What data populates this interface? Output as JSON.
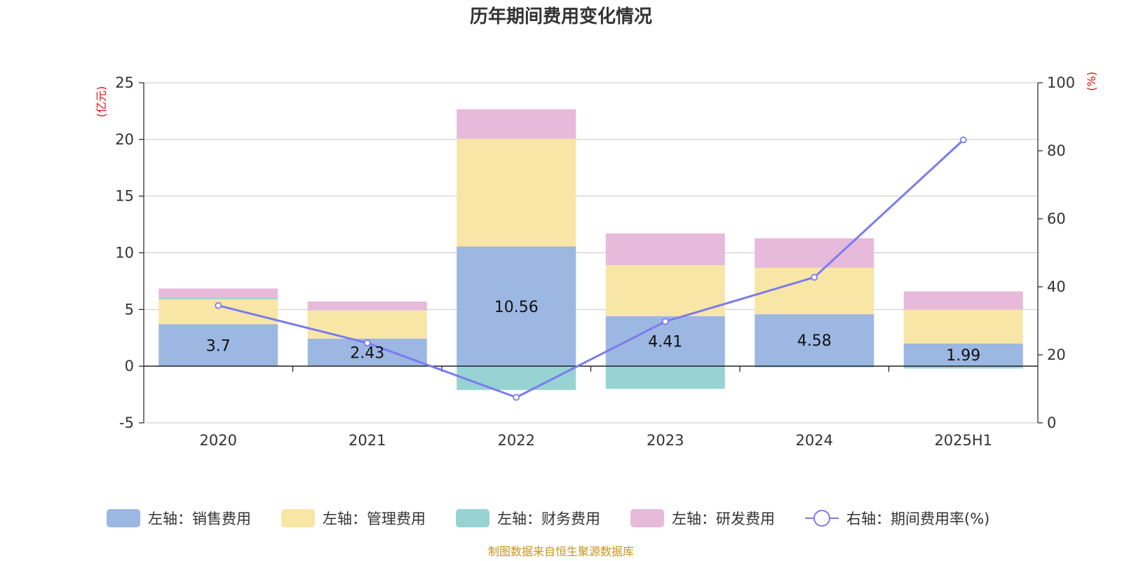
{
  "chart_data": {
    "type": "bar",
    "stacked": true,
    "title": "历年期间费用变化情况",
    "source": "制图数据来自恒生聚源数据库",
    "categories": [
      "2020",
      "2021",
      "2022",
      "2023",
      "2024",
      "2025H1"
    ],
    "left_axis": {
      "unit": "(亿元)",
      "ylim": [
        -5,
        25
      ],
      "ticks": [
        "-5",
        "0",
        "5",
        "10",
        "15",
        "20",
        "25"
      ]
    },
    "right_axis": {
      "unit": "(%)",
      "ylim": [
        0,
        100
      ],
      "ticks": [
        "0",
        "20",
        "40",
        "60",
        "80",
        "100"
      ]
    },
    "grid": true,
    "legend_position": "bottom",
    "series": [
      {
        "name": "左轴：销售费用",
        "axis": "left",
        "color": "#9cb7e2",
        "values": [
          3.7,
          2.43,
          10.56,
          4.41,
          4.58,
          1.99
        ],
        "labels": [
          "3.7",
          "2.43",
          "10.56",
          "4.41",
          "4.58",
          "1.99"
        ]
      },
      {
        "name": "左轴：管理费用",
        "axis": "left",
        "color": "#f8e6a6",
        "values": [
          2.2,
          2.5,
          9.5,
          4.5,
          4.1,
          3.0
        ]
      },
      {
        "name": "左轴：财务费用",
        "axis": "left",
        "color": "#97d3d3",
        "values": [
          0.15,
          0.02,
          -2.1,
          -2.0,
          -0.1,
          -0.2
        ]
      },
      {
        "name": "左轴：研发费用",
        "axis": "left",
        "color": "#e7b9da",
        "values": [
          0.8,
          0.75,
          2.6,
          2.8,
          2.6,
          1.6
        ]
      },
      {
        "name": "右轴：期间费用率(%)",
        "axis": "right",
        "type": "line",
        "color": "#7b7bef",
        "values": [
          34.5,
          23.5,
          7.5,
          29.8,
          42.8,
          83.2
        ]
      }
    ]
  }
}
